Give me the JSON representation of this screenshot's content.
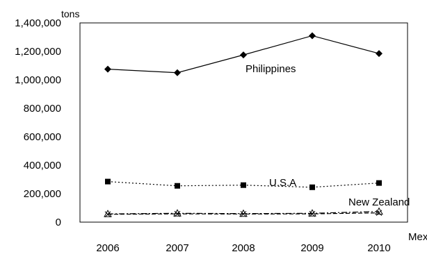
{
  "chart_data": {
    "type": "line",
    "y_unit": "tons",
    "categories": [
      "2006",
      "2007",
      "2008",
      "2009",
      "2010"
    ],
    "ylim": [
      0,
      1400000
    ],
    "y_ticks": [
      "0",
      "200,000",
      "400,000",
      "600,000",
      "800,000",
      "1,000,000",
      "1,200,000",
      "1,400,000"
    ],
    "y_tick_values": [
      0,
      200000,
      400000,
      600000,
      800000,
      1000000,
      1200000,
      1400000
    ],
    "grid": false,
    "series": [
      {
        "name": "Philippines",
        "values": [
          1075000,
          1050000,
          1175000,
          1310000,
          1185000
        ],
        "marker": "diamond",
        "line": "solid"
      },
      {
        "name": "U.S.A",
        "values": [
          285000,
          255000,
          260000,
          245000,
          275000
        ],
        "marker": "square",
        "line": "dotted"
      },
      {
        "name": "New Zealand",
        "values": [
          58000,
          62000,
          60000,
          62000,
          75000
        ],
        "marker": "triangle",
        "line": "dashdot"
      },
      {
        "name": "Mexico",
        "values": [
          55000,
          58000,
          57000,
          58000,
          65000
        ],
        "marker": "x",
        "line": "dashed"
      }
    ]
  }
}
